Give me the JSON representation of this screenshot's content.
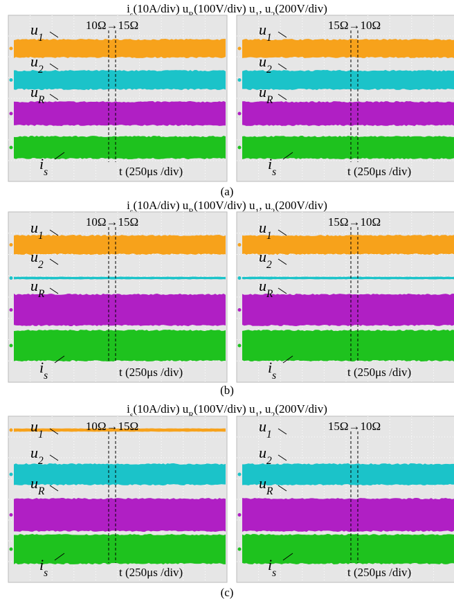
{
  "panels": [
    {
      "caption": "(a)",
      "header": [
        {
          "text": "i",
          "sub": "s"
        },
        {
          "text": "(10A/div) u",
          "sub": "R"
        },
        {
          "text": "(100V/div) u",
          "sub": "1"
        },
        {
          "text": ", u",
          "sub": "2"
        },
        {
          "text": "(200V/div)"
        }
      ],
      "screens": [
        {
          "transition": "10Ω→15Ω",
          "time": "t (250μs /div)",
          "labels": [
            {
              "text": "u",
              "sub": "1"
            },
            {
              "text": "u",
              "sub": "2"
            },
            {
              "text": "u",
              "sub": "R"
            },
            {
              "text": "i",
              "sub": "s"
            }
          ]
        },
        {
          "transition": "15Ω→10Ω",
          "time": "t (250μs /div)",
          "labels": [
            {
              "text": "u",
              "sub": "1"
            },
            {
              "text": "u",
              "sub": "2"
            },
            {
              "text": "u",
              "sub": "R"
            },
            {
              "text": "i",
              "sub": "s"
            }
          ]
        }
      ]
    },
    {
      "caption": "(b)",
      "header": [
        {
          "text": "i",
          "sub": "s"
        },
        {
          "text": "(10A/div) u",
          "sub": "R"
        },
        {
          "text": "(100V/div) u",
          "sub": "1"
        },
        {
          "text": ", u",
          "sub": "2"
        },
        {
          "text": "(200V/div)"
        }
      ],
      "screens": [
        {
          "transition": "10Ω→15Ω",
          "time": "t (250μs /div)",
          "labels": [
            {
              "text": "u",
              "sub": "1"
            },
            {
              "text": "u",
              "sub": "2"
            },
            {
              "text": "u",
              "sub": "R"
            },
            {
              "text": "i",
              "sub": "s"
            }
          ]
        },
        {
          "transition": "15Ω→10Ω",
          "time": "t (250μs /div)",
          "labels": [
            {
              "text": "u",
              "sub": "1"
            },
            {
              "text": "u",
              "sub": "2"
            },
            {
              "text": "u",
              "sub": "R"
            },
            {
              "text": "i",
              "sub": "s"
            }
          ]
        }
      ]
    },
    {
      "caption": "(c)",
      "header": [
        {
          "text": "i",
          "sub": "s"
        },
        {
          "text": "(10A/div) u",
          "sub": "R"
        },
        {
          "text": "(100V/div) u",
          "sub": "1"
        },
        {
          "text": ", u",
          "sub": "2"
        },
        {
          "text": "(200V/div)"
        }
      ],
      "screens": [
        {
          "transition": "10Ω→15Ω",
          "time": "t (250μs /div)",
          "labels": [
            {
              "text": "u",
              "sub": "1"
            },
            {
              "text": "u",
              "sub": "2"
            },
            {
              "text": "u",
              "sub": "R"
            },
            {
              "text": "i",
              "sub": "s"
            }
          ]
        },
        {
          "transition": "15Ω→10Ω",
          "time": "t (250μs /div)",
          "labels": [
            {
              "text": "u",
              "sub": "1"
            },
            {
              "text": "u",
              "sub": "2"
            },
            {
              "text": "u",
              "sub": "R"
            },
            {
              "text": "i",
              "sub": "s"
            }
          ]
        }
      ]
    }
  ]
}
